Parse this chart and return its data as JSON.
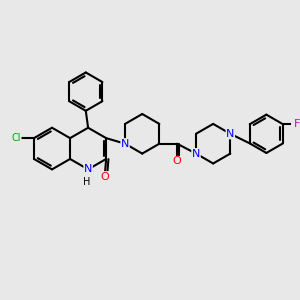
{
  "background_color": "#e8e8e8",
  "bond_color": "#000000",
  "bond_width": 1.5,
  "atom_colors": {
    "N": "#0000ff",
    "O": "#ff0000",
    "Cl": "#00aa00",
    "F": "#cc00cc",
    "H": "#000000",
    "C": "#000000"
  },
  "font_size": 8
}
